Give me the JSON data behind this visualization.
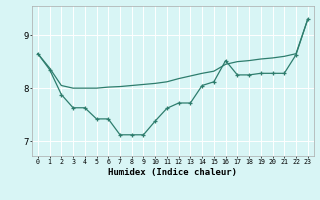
{
  "color": "#2e7d6d",
  "bg_color": "#d8f5f5",
  "grid_color": "#ffffff",
  "xlabel": "Humidex (Indice chaleur)",
  "ylabel_ticks": [
    7,
    8,
    9
  ],
  "xlim": [
    -0.5,
    23.5
  ],
  "ylim": [
    6.72,
    9.55
  ],
  "smooth_x": [
    0,
    1,
    2,
    3,
    4,
    5,
    6,
    7,
    8,
    9,
    10,
    11,
    12,
    13,
    14,
    15,
    16,
    17,
    18,
    19,
    20,
    21,
    22,
    23
  ],
  "smooth_y": [
    8.65,
    8.38,
    8.05,
    8.0,
    8.0,
    8.0,
    8.02,
    8.03,
    8.05,
    8.07,
    8.09,
    8.12,
    8.18,
    8.23,
    8.28,
    8.32,
    8.45,
    8.5,
    8.52,
    8.55,
    8.57,
    8.6,
    8.65,
    9.3
  ],
  "marker_x": [
    0,
    1,
    2,
    3,
    4,
    5,
    6,
    7,
    8,
    9,
    10,
    11,
    12,
    13,
    14,
    15,
    16,
    17,
    18,
    19,
    20,
    21,
    22,
    23
  ],
  "marker_y": [
    8.65,
    8.35,
    7.88,
    7.63,
    7.63,
    7.42,
    7.42,
    7.12,
    7.12,
    7.12,
    7.38,
    7.62,
    7.72,
    7.72,
    8.05,
    8.12,
    8.52,
    8.25,
    8.25,
    8.28,
    8.28,
    8.28,
    8.63,
    9.3
  ]
}
